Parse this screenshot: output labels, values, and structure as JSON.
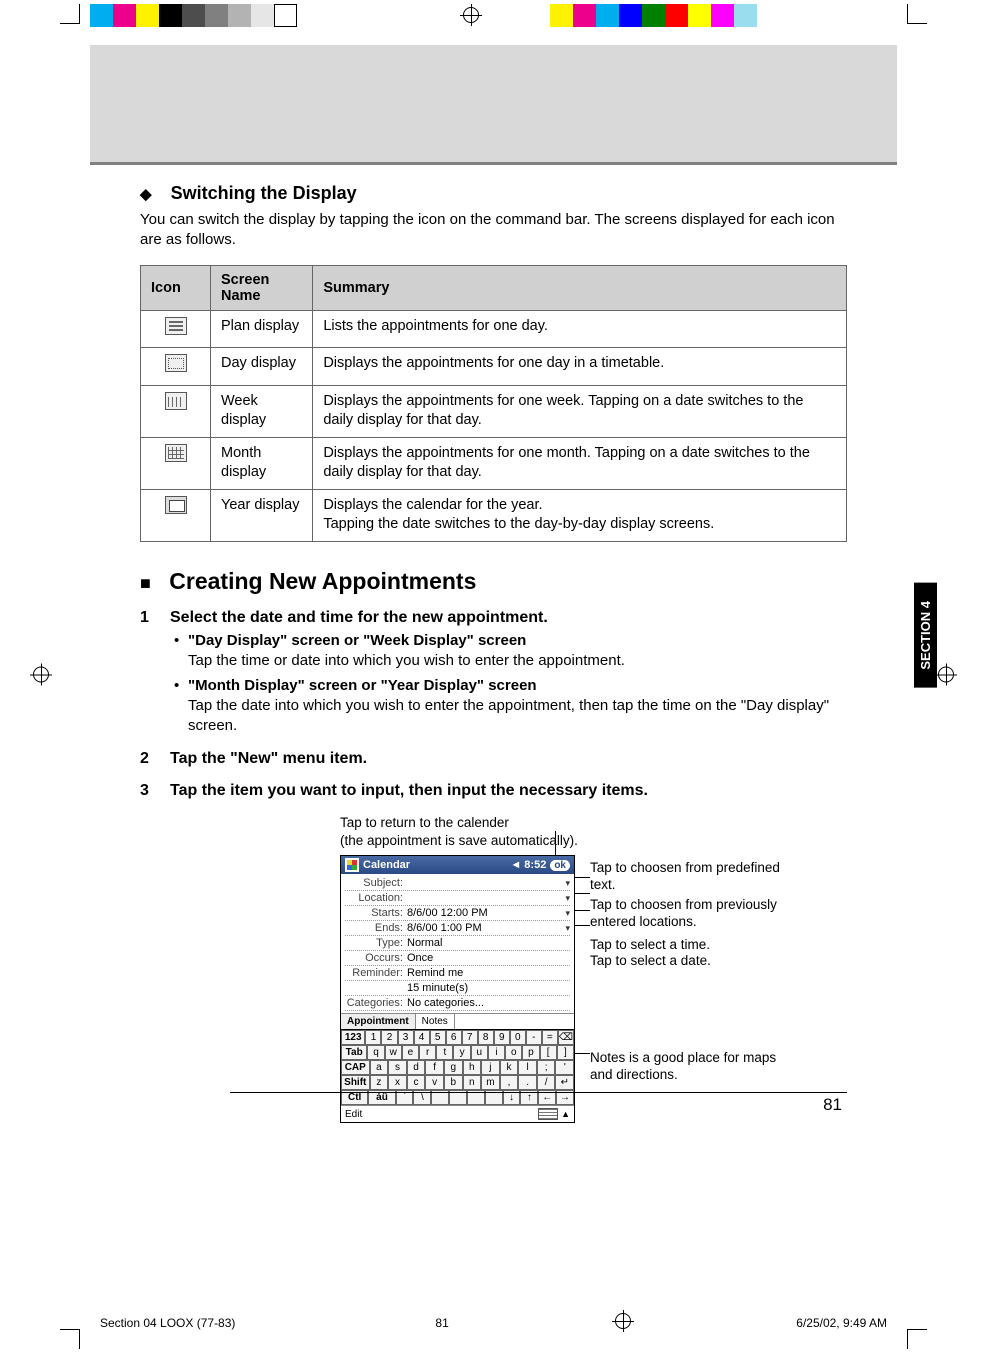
{
  "regColorsLeft": [
    "#00aeef",
    "#ec008c",
    "#fff200",
    "#000000",
    "#4d4d4d",
    "#808080",
    "#b3b3b3",
    "#e6e6e6",
    "#ffffff"
  ],
  "regColorsRight": [
    "#fff200",
    "#ec008c",
    "#00aeef",
    "#0000ff",
    "#008000",
    "#ff0000",
    "#ffff00",
    "#ff00ff",
    "#99ddee"
  ],
  "sectionTab": "SECTION 4",
  "switching": {
    "diamond": "◆",
    "title": "Switching the Display",
    "intro": "You can switch the display by tapping the icon on the command bar. The screens displayed for each icon are as follows."
  },
  "table": {
    "headers": [
      "Icon",
      "Screen Name",
      "Summary"
    ],
    "rows": [
      {
        "iconClass": "icon-plan",
        "name": "Plan display",
        "summary": "Lists the appointments for one day."
      },
      {
        "iconClass": "icon-day",
        "name": "Day display",
        "summary": "Displays the appointments for one day in a timetable."
      },
      {
        "iconClass": "icon-week",
        "name": "Week display",
        "summary": "Displays the appointments for one week. Tapping on a date switches to the daily display for that day."
      },
      {
        "iconClass": "icon-month",
        "name": "Month display",
        "summary": "Displays the appointments for one month. Tapping on a date switches to the daily display for that day."
      },
      {
        "iconClass": "icon-year",
        "name": "Year display",
        "summary": "Displays the calendar for the year.\nTapping the date switches to the day-by-day display screens."
      }
    ]
  },
  "creating": {
    "square": "■",
    "title": "Creating New Appointments",
    "steps": [
      {
        "title": "Select the date and time for the new appointment.",
        "bullets": [
          {
            "bold": "\"Day Display\" screen or \"Week Display\" screen",
            "body": "Tap the time or date into which you wish to enter the appointment."
          },
          {
            "bold": "\"Month Display\" screen or \"Year Display\" screen",
            "body": "Tap the date into which you wish to enter the appointment, then tap the time on the \"Day display\" screen."
          }
        ]
      },
      {
        "title": "Tap the \"New\" menu item."
      },
      {
        "title": "Tap the item you want to input, then input the necessary items."
      }
    ]
  },
  "figure": {
    "captionTop": "Tap to return to the calender\n(the appointment is save automatically).",
    "callouts": {
      "c1": "Tap to choosen from predefined text.",
      "c2": "Tap to choosen from previously entered locations.",
      "c3": "Tap to select a time.",
      "c4": "Tap to select a date.",
      "c5": "Notes is a good place for maps and directions."
    },
    "pda": {
      "title": "Calendar",
      "time": "◄ 8:52",
      "ok": "ok",
      "rows": [
        {
          "lbl": "Subject:",
          "val": "",
          "dd": "▾"
        },
        {
          "lbl": "Location:",
          "val": "",
          "dd": "▾"
        },
        {
          "lbl": "Starts:",
          "val": "8/6/00    12:00 PM",
          "dd": "▾"
        },
        {
          "lbl": "Ends:",
          "val": "8/6/00    1:00 PM",
          "dd": "▾"
        },
        {
          "lbl": "Type:",
          "val": "Normal"
        },
        {
          "lbl": "Occurs:",
          "val": "Once"
        },
        {
          "lbl": "Reminder:",
          "val": "Remind me"
        },
        {
          "lbl": "",
          "val": "15   minute(s)"
        },
        {
          "lbl": "Categories:",
          "val": "No categories..."
        }
      ],
      "tabs": [
        "Appointment",
        "Notes"
      ],
      "kbd": [
        [
          "123",
          "1",
          "2",
          "3",
          "4",
          "5",
          "6",
          "7",
          "8",
          "9",
          "0",
          "-",
          "=",
          "⌫"
        ],
        [
          "Tab",
          "q",
          "w",
          "e",
          "r",
          "t",
          "y",
          "u",
          "i",
          "o",
          "p",
          "[",
          "]"
        ],
        [
          "CAP",
          "a",
          "s",
          "d",
          "f",
          "g",
          "h",
          "j",
          "k",
          "l",
          ";",
          "'"
        ],
        [
          "Shift",
          "z",
          "x",
          "c",
          "v",
          "b",
          "n",
          "m",
          ",",
          ".",
          "/",
          "↵"
        ],
        [
          "Ctl",
          "áü",
          "`",
          "\\",
          "",
          "",
          "",
          "",
          "↓",
          "↑",
          "←",
          "→"
        ]
      ],
      "edit": "Edit"
    }
  },
  "pageNumber": "81",
  "footer": {
    "left": "Section 04 LOOX (77-83)",
    "mid": "81",
    "right": "6/25/02, 9:49 AM"
  }
}
